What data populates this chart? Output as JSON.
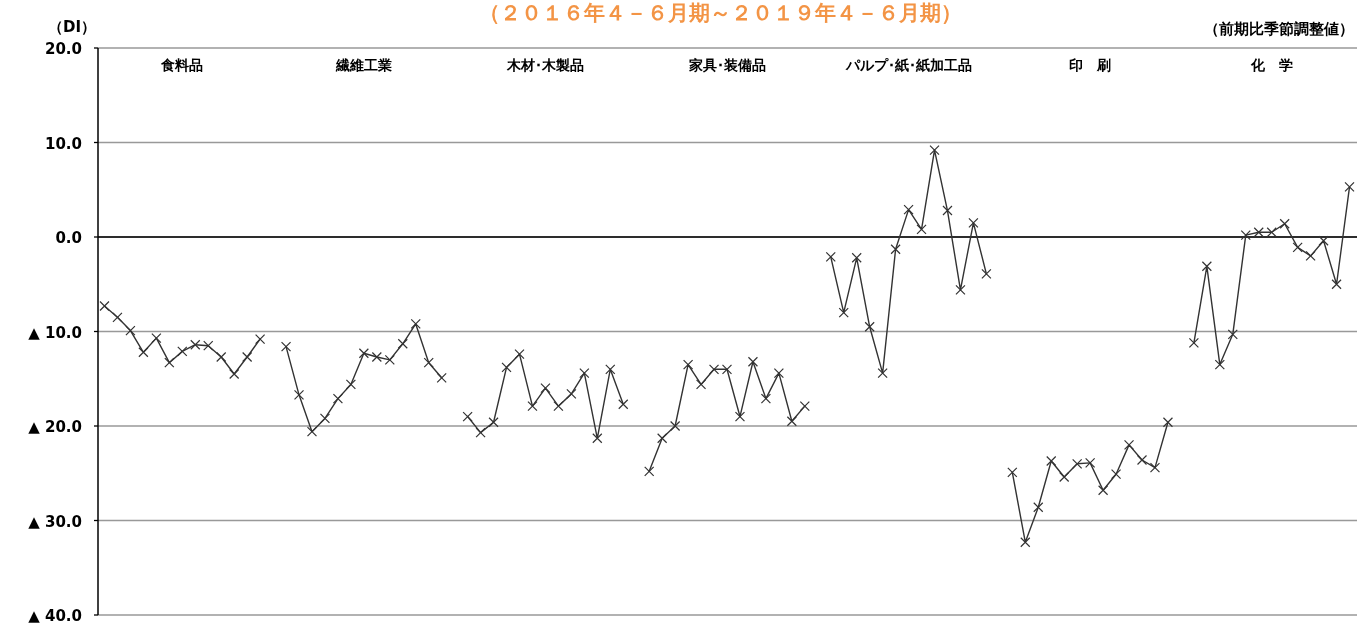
{
  "chart_data": {
    "type": "line",
    "title": "（２０１６年４－６月期～２０１９年４－６月期）",
    "ylabel": "（DI）",
    "annotations": [
      "（前期比季節調整値）",
      "食料品",
      "繊維工業",
      "木材･木製品",
      "家具･装備品",
      "パルプ･紙･紙加工品",
      "印　刷",
      "化　学"
    ],
    "categories": [
      null,
      null,
      null,
      null,
      null,
      null,
      null,
      null,
      null,
      null,
      null,
      null,
      null,
      null,
      null,
      null,
      null,
      null,
      null,
      null,
      null,
      null,
      null,
      null,
      null,
      null,
      null,
      null,
      null,
      null,
      null,
      null,
      null,
      null,
      null,
      null,
      null,
      null,
      null,
      null,
      null,
      null,
      null,
      null,
      null,
      null,
      null,
      null,
      null,
      null,
      null,
      null,
      null,
      null,
      null,
      null,
      null,
      null,
      null,
      null,
      null,
      null,
      null,
      null,
      null,
      null,
      null,
      null,
      null,
      null,
      null,
      null,
      null,
      null,
      null,
      null,
      null,
      null,
      null,
      null,
      null,
      null,
      null,
      null,
      null,
      null,
      null,
      null,
      null,
      null,
      null,
      null,
      null,
      null,
      null,
      null,
      null
    ],
    "ylim": [
      -40,
      20
    ],
    "yticks": [
      {
        "value": 20,
        "label": "20.0"
      },
      {
        "value": 10,
        "label": "10.0"
      },
      {
        "value": 0,
        "label": "0.0"
      },
      {
        "value": -10,
        "label": "▲ 10.0"
      },
      {
        "value": -20,
        "label": "▲ 20.0"
      },
      {
        "value": -30,
        "label": "▲ 30.0"
      },
      {
        "value": -40,
        "label": "▲ 40.0"
      }
    ],
    "tick_labels": "y",
    "grid": "y",
    "ref_lines": [
      {
        "axis": "y",
        "value": 0,
        "color": "#000000"
      }
    ],
    "marker": "cross",
    "line_style": "solid",
    "series": [
      {
        "color": "#333333",
        "values": [
          -7.3,
          -8.5,
          -9.9,
          -12.2,
          -10.7,
          -13.3,
          -12.1,
          -11.4,
          -11.5,
          -12.7,
          -14.5,
          -12.7,
          -10.8,
          null,
          -11.6,
          -16.7,
          -20.6,
          -19.2,
          -17.1,
          -15.6,
          -12.3,
          -12.7,
          -13.0,
          -11.3,
          -9.2,
          -13.3,
          -14.9,
          null,
          -19.0,
          -20.7,
          -19.6,
          -13.8,
          -12.4,
          -17.9,
          -16.0,
          -17.9,
          -16.6,
          -14.4,
          -21.3,
          -14.0,
          -17.7,
          null,
          -24.8,
          -21.3,
          -20.0,
          -13.5,
          -15.6,
          -14.0,
          -14.0,
          -19.0,
          -13.2,
          -17.1,
          -14.4,
          -19.5,
          -17.9,
          null,
          -2.1,
          -8.0,
          -2.2,
          -9.5,
          -14.4,
          -1.3,
          2.9,
          0.8,
          9.2,
          2.8,
          -5.6,
          1.5,
          -3.9,
          null,
          -24.9,
          -32.3,
          -28.6,
          -23.7,
          -25.4,
          -24.0,
          -23.9,
          -26.8,
          -25.1,
          -22.0,
          -23.6,
          -24.4,
          -19.6,
          null,
          -11.2,
          -3.1,
          -13.5,
          -10.3,
          0.2,
          0.5,
          0.5,
          1.4,
          -1.1,
          -2.0,
          -0.4,
          -5.0,
          5.3
        ]
      }
    ]
  }
}
